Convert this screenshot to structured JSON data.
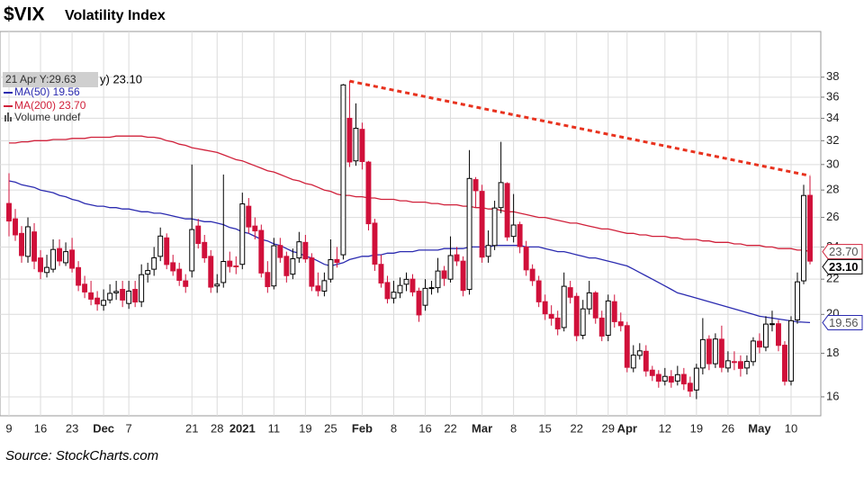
{
  "chart_data": {
    "type": "candlestick",
    "title": "$VIX",
    "subtitle": "Volatility Index",
    "source": "Source:  StockCharts.com",
    "tooltip": "21 Apr Y:29.63",
    "price_label": "y) 23.10",
    "close_end_label": "23.10",
    "volume_label": "Volume undef",
    "up_color": "#ffffff",
    "down_color": "#d0103a",
    "trendline_color": "#e8321e",
    "log_scale": true,
    "grid": true,
    "ylim": [
      15.2,
      43
    ],
    "yticks": [
      16,
      18,
      20,
      22,
      24,
      26,
      28,
      30,
      32,
      34,
      36,
      38
    ],
    "categories": [
      "9",
      null,
      null,
      null,
      null,
      "16",
      null,
      null,
      null,
      null,
      "23",
      null,
      null,
      null,
      null,
      "Dec",
      null,
      null,
      null,
      "7",
      null,
      null,
      null,
      null,
      null,
      null,
      null,
      null,
      null,
      "21",
      null,
      null,
      null,
      "28",
      null,
      null,
      null,
      "2021",
      null,
      null,
      null,
      null,
      "11",
      null,
      null,
      null,
      null,
      "19",
      null,
      null,
      null,
      "25",
      null,
      null,
      null,
      null,
      "Feb",
      null,
      null,
      null,
      null,
      "8",
      null,
      null,
      null,
      null,
      "16",
      null,
      null,
      null,
      "22",
      null,
      null,
      null,
      null,
      "Mar",
      null,
      null,
      null,
      null,
      "8",
      null,
      null,
      null,
      null,
      "15",
      null,
      null,
      null,
      null,
      "22",
      null,
      null,
      null,
      null,
      "29",
      null,
      null,
      "Apr",
      null,
      null,
      null,
      null,
      null,
      "12",
      null,
      null,
      null,
      null,
      "19",
      null,
      null,
      null,
      null,
      "26",
      null,
      null,
      null,
      null,
      "May",
      null,
      null,
      null,
      null,
      "10",
      null,
      null,
      null
    ],
    "open": [
      27.0,
      25.9,
      24.9,
      23.4,
      25.0,
      23.3,
      22.4,
      22.6,
      23.9,
      23.0,
      23.8,
      22.7,
      21.7,
      21.2,
      20.9,
      20.5,
      20.8,
      21.2,
      21.4,
      20.6,
      21.4,
      20.7,
      22.3,
      22.6,
      23.4,
      24.6,
      23.0,
      22.6,
      21.9,
      22.5,
      25.4,
      24.3,
      23.4,
      21.6,
      21.8,
      23.1,
      22.8,
      22.9,
      26.8,
      25.4,
      25.1,
      22.4,
      21.6,
      24.1,
      23.4,
      22.3,
      23.3,
      24.3,
      23.3,
      21.6,
      21.3,
      22.0,
      23.2,
      23.5,
      34.0,
      30.3,
      33.0,
      30.2,
      25.6,
      22.9,
      21.8,
      20.9,
      21.2,
      21.7,
      22.0,
      21.3,
      20.5,
      21.5,
      21.5,
      22.5,
      22.0,
      23.5,
      23.1,
      21.4,
      28.8,
      27.9,
      23.4,
      24.1,
      26.7,
      28.5,
      24.7,
      25.5,
      24.0,
      22.6,
      21.9,
      20.7,
      20.0,
      19.8,
      19.3,
      21.5,
      21.0,
      18.9,
      20.3,
      21.2,
      19.8,
      18.9,
      20.7,
      19.6,
      19.4,
      17.3,
      17.9,
      18.1,
      17.2,
      17.0,
      16.7,
      16.9,
      16.7,
      17.0,
      16.6,
      16.3,
      17.3,
      18.7,
      17.5,
      18.7,
      17.3,
      17.6,
      17.6,
      17.3,
      17.6,
      18.6,
      18.3,
      19.5,
      19.5,
      18.4,
      16.7,
      19.7,
      21.9,
      27.6
    ],
    "high": [
      29.3,
      26.6,
      25.4,
      26.0,
      25.6,
      23.8,
      23.5,
      24.5,
      24.5,
      24.3,
      24.6,
      23.1,
      22.2,
      21.9,
      21.3,
      21.4,
      21.7,
      21.9,
      21.9,
      21.9,
      21.9,
      22.9,
      23.0,
      24.0,
      25.3,
      24.9,
      23.5,
      23.0,
      22.3,
      30.0,
      25.9,
      24.8,
      23.8,
      22.3,
      29.2,
      23.7,
      23.4,
      27.8,
      27.4,
      26.0,
      25.5,
      23.1,
      24.6,
      24.6,
      23.7,
      23.9,
      25.0,
      24.8,
      23.6,
      22.4,
      22.4,
      24.5,
      24.0,
      37.3,
      37.6,
      35.4,
      33.6,
      30.3,
      25.9,
      23.5,
      22.2,
      21.9,
      22.1,
      22.4,
      22.3,
      21.5,
      22.0,
      21.9,
      23.3,
      22.8,
      24.7,
      24.0,
      23.4,
      31.2,
      29.0,
      28.4,
      25.1,
      27.2,
      31.9,
      28.6,
      27.7,
      25.7,
      24.4,
      22.9,
      22.2,
      21.1,
      20.5,
      20.2,
      22.4,
      21.9,
      21.2,
      20.8,
      21.9,
      21.3,
      20.2,
      21.1,
      21.1,
      20.1,
      19.6,
      18.4,
      18.5,
      18.4,
      17.4,
      17.2,
      17.3,
      17.2,
      17.4,
      17.3,
      16.9,
      17.5,
      19.8,
      18.9,
      19.0,
      19.4,
      18.1,
      18.1,
      17.9,
      17.9,
      18.8,
      19.0,
      19.9,
      20.2,
      19.7,
      18.6,
      19.9,
      22.4,
      28.4,
      29.1
    ],
    "low": [
      24.7,
      24.4,
      23.0,
      23.0,
      22.6,
      22.0,
      22.1,
      22.4,
      22.8,
      22.8,
      22.4,
      21.3,
      20.9,
      20.5,
      20.2,
      20.2,
      20.6,
      20.8,
      20.4,
      20.3,
      20.4,
      20.4,
      21.8,
      22.2,
      23.1,
      22.6,
      22.2,
      21.6,
      21.2,
      22.1,
      23.9,
      23.0,
      21.2,
      21.2,
      21.5,
      22.4,
      22.3,
      22.6,
      24.9,
      24.5,
      22.1,
      21.2,
      21.4,
      23.0,
      21.8,
      22.0,
      23.0,
      23.0,
      21.3,
      21.0,
      21.0,
      21.8,
      22.7,
      23.2,
      29.8,
      29.9,
      29.6,
      25.1,
      22.5,
      21.5,
      20.6,
      20.6,
      20.9,
      21.3,
      21.0,
      19.6,
      20.2,
      21.1,
      21.2,
      21.6,
      21.8,
      22.8,
      21.0,
      21.1,
      26.7,
      23.0,
      23.0,
      23.8,
      26.3,
      24.4,
      24.3,
      23.6,
      22.2,
      21.6,
      20.4,
      19.7,
      19.4,
      18.9,
      19.1,
      20.6,
      18.6,
      18.7,
      20.0,
      19.5,
      18.6,
      18.6,
      19.3,
      19.1,
      17.1,
      17.1,
      17.7,
      16.9,
      16.7,
      16.4,
      16.5,
      16.4,
      16.5,
      16.3,
      16.0,
      15.9,
      17.0,
      17.2,
      17.3,
      17.1,
      17.1,
      17.2,
      16.9,
      17.0,
      17.4,
      18.0,
      18.1,
      19.1,
      18.1,
      16.5,
      16.5,
      19.5,
      21.7,
      22.9
    ],
    "close": [
      25.75,
      24.8,
      23.45,
      25.35,
      23.1,
      22.45,
      22.71,
      23.84,
      23.11,
      23.7,
      22.66,
      21.64,
      21.25,
      20.84,
      20.57,
      20.77,
      21.17,
      21.28,
      20.79,
      21.3,
      20.68,
      22.27,
      22.52,
      23.31,
      24.72,
      22.89,
      22.5,
      21.93,
      21.57,
      25.16,
      24.23,
      23.31,
      21.53,
      21.7,
      23.08,
      22.77,
      22.75,
      26.97,
      25.34,
      25.07,
      22.37,
      21.56,
      24.08,
      23.33,
      22.21,
      23.25,
      24.34,
      23.24,
      21.58,
      21.32,
      21.91,
      23.19,
      23.02,
      37.21,
      30.21,
      33.09,
      30.24,
      25.56,
      22.91,
      21.77,
      20.87,
      21.24,
      21.63,
      21.99,
      21.25,
      19.97,
      21.46,
      21.5,
      22.49,
      22.05,
      23.45,
      23.11,
      21.34,
      28.89,
      27.95,
      23.35,
      24.1,
      26.67,
      28.57,
      24.66,
      25.47,
      24.03,
      22.56,
      21.91,
      20.69,
      20.03,
      19.79,
      19.23,
      21.58,
      20.95,
      18.88,
      20.3,
      21.2,
      19.81,
      18.86,
      20.74,
      19.61,
      19.4,
      17.33,
      17.91,
      18.12,
      17.16,
      16.95,
      16.69,
      16.91,
      16.65,
      16.99,
      16.57,
      16.25,
      17.29,
      18.68,
      17.5,
      18.71,
      17.33,
      17.64,
      17.56,
      17.28,
      17.61,
      18.61,
      18.31,
      19.48,
      19.5,
      18.39,
      16.69,
      19.66,
      21.84,
      27.59,
      23.1
    ],
    "series": [
      {
        "name": "MA(50) 19.56",
        "color": "#2b2bb0",
        "values": [
          28.7,
          28.6,
          28.4,
          28.3,
          28.2,
          28.0,
          27.9,
          27.8,
          27.6,
          27.5,
          27.3,
          27.2,
          27.0,
          26.9,
          26.8,
          26.8,
          26.7,
          26.7,
          26.6,
          26.6,
          26.5,
          26.4,
          26.4,
          26.3,
          26.3,
          26.2,
          26.1,
          26.0,
          25.9,
          25.9,
          25.8,
          25.7,
          25.7,
          25.6,
          25.5,
          25.3,
          25.2,
          25.0,
          24.9,
          24.7,
          24.5,
          24.4,
          24.2,
          24.1,
          23.9,
          23.7,
          23.6,
          23.4,
          23.3,
          23.1,
          22.9,
          22.8,
          22.9,
          23.0,
          23.2,
          23.3,
          23.4,
          23.4,
          23.5,
          23.5,
          23.6,
          23.6,
          23.7,
          23.7,
          23.7,
          23.8,
          23.8,
          23.8,
          23.8,
          23.9,
          23.9,
          23.9,
          23.9,
          24.0,
          24.0,
          24.0,
          24.0,
          24.1,
          24.1,
          24.1,
          24.1,
          24.1,
          24.0,
          24.0,
          24.0,
          23.9,
          23.8,
          23.7,
          23.7,
          23.6,
          23.5,
          23.4,
          23.3,
          23.3,
          23.2,
          23.1,
          23.0,
          22.9,
          22.8,
          22.6,
          22.4,
          22.2,
          22.0,
          21.8,
          21.6,
          21.4,
          21.2,
          21.1,
          21.0,
          20.9,
          20.8,
          20.7,
          20.6,
          20.5,
          20.4,
          20.3,
          20.2,
          20.1,
          20.0,
          19.9,
          19.85,
          19.8,
          19.75,
          19.7,
          19.65,
          19.6,
          19.58,
          19.56
        ]
      },
      {
        "name": "MA(200) 23.70",
        "color": "#d0203a",
        "end_label": "23.70",
        "values": [
          31.8,
          31.8,
          31.9,
          31.9,
          32.0,
          32.0,
          32.0,
          32.1,
          32.1,
          32.1,
          32.2,
          32.2,
          32.2,
          32.3,
          32.3,
          32.3,
          32.3,
          32.4,
          32.4,
          32.4,
          32.4,
          32.4,
          32.3,
          32.3,
          32.2,
          32.0,
          31.9,
          31.7,
          31.6,
          31.4,
          31.3,
          31.2,
          31.1,
          31.0,
          30.8,
          30.6,
          30.4,
          30.3,
          30.1,
          29.9,
          29.7,
          29.5,
          29.4,
          29.2,
          29.0,
          28.8,
          28.7,
          28.5,
          28.4,
          28.2,
          28.0,
          27.9,
          27.7,
          27.6,
          27.6,
          27.5,
          27.5,
          27.4,
          27.4,
          27.3,
          27.3,
          27.3,
          27.2,
          27.2,
          27.1,
          27.1,
          27.1,
          27.0,
          27.0,
          26.9,
          26.9,
          26.9,
          26.8,
          26.8,
          26.7,
          26.7,
          26.6,
          26.6,
          26.5,
          26.4,
          26.4,
          26.3,
          26.2,
          26.1,
          26.0,
          26.0,
          25.9,
          25.8,
          25.7,
          25.6,
          25.6,
          25.5,
          25.4,
          25.3,
          25.2,
          25.2,
          25.1,
          25.0,
          24.9,
          24.9,
          24.8,
          24.8,
          24.7,
          24.7,
          24.7,
          24.6,
          24.6,
          24.5,
          24.5,
          24.5,
          24.4,
          24.4,
          24.3,
          24.3,
          24.3,
          24.2,
          24.2,
          24.1,
          24.1,
          24.1,
          24.0,
          24.0,
          23.9,
          23.9,
          23.9,
          23.8,
          23.8,
          23.7
        ]
      }
    ]
  }
}
